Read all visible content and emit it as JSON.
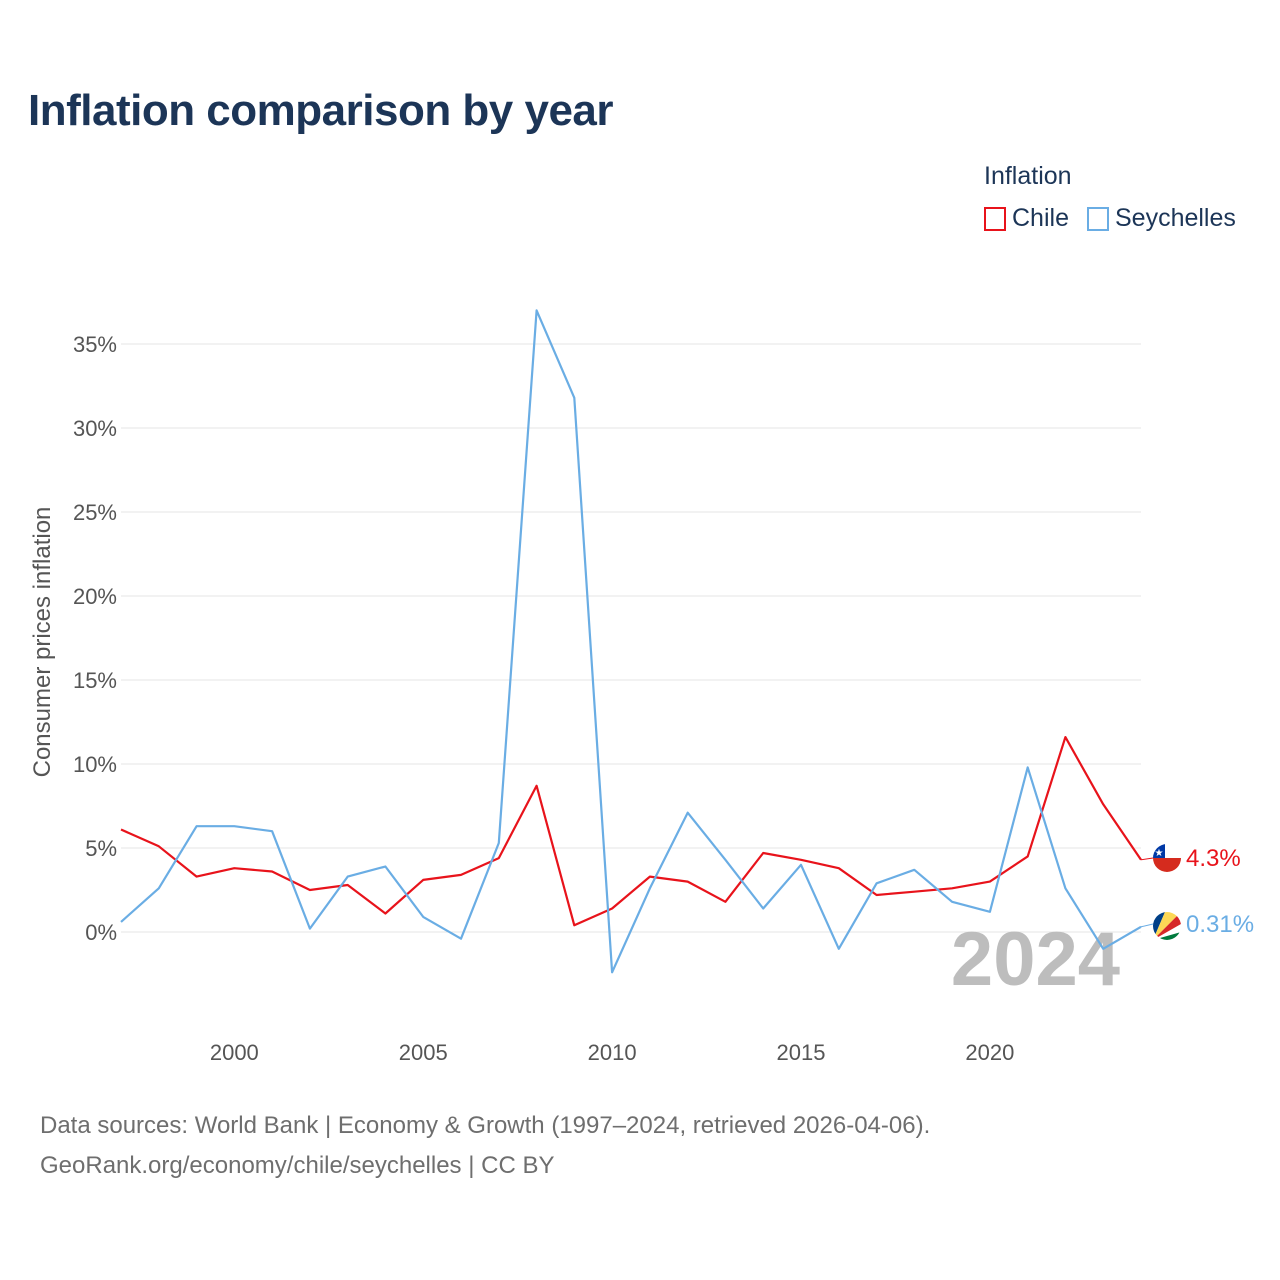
{
  "chart_data": {
    "type": "line",
    "title": "Inflation comparison by year",
    "legend_title": "Inflation",
    "legend_position": "top-right",
    "ylabel": "Consumer prices inflation",
    "xlabel": "",
    "x": [
      1997,
      1998,
      1999,
      2000,
      2001,
      2002,
      2003,
      2004,
      2005,
      2006,
      2007,
      2008,
      2009,
      2010,
      2011,
      2012,
      2013,
      2014,
      2015,
      2016,
      2017,
      2018,
      2019,
      2020,
      2021,
      2022,
      2023,
      2024
    ],
    "xlim": [
      1997,
      2024
    ],
    "ylim": [
      -5,
      37
    ],
    "x_ticks": [
      2000,
      2005,
      2010,
      2015,
      2020
    ],
    "x_tick_labels": [
      "2000",
      "2005",
      "2010",
      "2015",
      "2020"
    ],
    "y_ticks": [
      0,
      5,
      10,
      15,
      20,
      25,
      30,
      35
    ],
    "y_tick_labels": [
      "0%",
      "5%",
      "10%",
      "15%",
      "20%",
      "25%",
      "30%",
      "35%"
    ],
    "grid": true,
    "watermark_year": "2024",
    "series": [
      {
        "name": "Chile",
        "color": "#e8131b",
        "values": [
          6.1,
          5.1,
          3.3,
          3.8,
          3.6,
          2.5,
          2.8,
          1.1,
          3.1,
          3.4,
          4.4,
          8.7,
          0.4,
          1.4,
          3.3,
          3.0,
          1.8,
          4.7,
          4.3,
          3.8,
          2.2,
          2.4,
          2.6,
          3.0,
          4.5,
          11.6,
          7.6,
          4.3
        ],
        "end_label": "4.3%",
        "flag_icon": "chile-flag-icon"
      },
      {
        "name": "Seychelles",
        "color": "#6aade4",
        "values": [
          0.6,
          2.6,
          6.3,
          6.3,
          6.0,
          0.2,
          3.3,
          3.9,
          0.9,
          -0.4,
          5.3,
          37.0,
          31.8,
          -2.4,
          2.6,
          7.1,
          4.3,
          1.4,
          4.0,
          -1.0,
          2.9,
          3.7,
          1.8,
          1.2,
          9.8,
          2.6,
          -1.0,
          0.31
        ],
        "end_label": "0.31%",
        "flag_icon": "seychelles-flag-icon"
      }
    ]
  },
  "footer": {
    "line1": "Data sources: World Bank | Economy & Growth (1997–2024, retrieved 2026-04-06).",
    "line2": "GeoRank.org/economy/chile/seychelles | CC BY"
  },
  "colors": {
    "title": "#1c3557",
    "grid": "#e6e6e6",
    "tick_text": "#555555",
    "watermark": "#bdbdbd"
  }
}
